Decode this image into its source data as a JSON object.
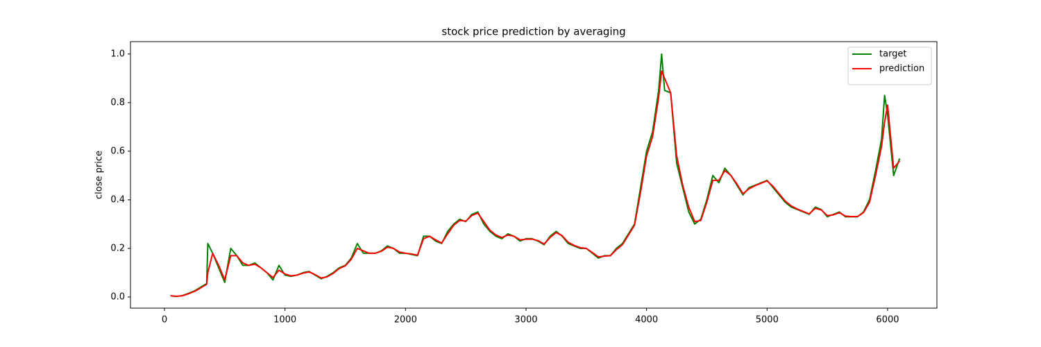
{
  "chart_data": {
    "type": "line",
    "title": "stock price prediction by averaging",
    "y_label": "close price",
    "xlim": [
      -282,
      6409
    ],
    "ylim": [
      -0.046,
      1.051
    ],
    "xticks": [
      0,
      1000,
      2000,
      3000,
      4000,
      5000,
      6000
    ],
    "yticks": [
      {
        "value": 0,
        "label": "0.0"
      },
      {
        "value": 0.2,
        "label": "0.2"
      },
      {
        "value": 0.4,
        "label": "0.4"
      },
      {
        "value": 0.6,
        "label": "0.6"
      },
      {
        "value": 0.8,
        "label": "0.8"
      },
      {
        "value": 1,
        "label": "1.0"
      }
    ],
    "legend": "upper right",
    "x": [
      50,
      100,
      150,
      200,
      250,
      300,
      350,
      360,
      400,
      450,
      500,
      550,
      600,
      650,
      700,
      750,
      800,
      850,
      900,
      950,
      1000,
      1050,
      1100,
      1150,
      1200,
      1250,
      1300,
      1350,
      1400,
      1450,
      1500,
      1550,
      1600,
      1650,
      1700,
      1750,
      1800,
      1850,
      1900,
      1950,
      2000,
      2050,
      2100,
      2150,
      2200,
      2250,
      2300,
      2350,
      2400,
      2450,
      2500,
      2550,
      2600,
      2650,
      2700,
      2750,
      2800,
      2850,
      2900,
      2950,
      3000,
      3050,
      3100,
      3150,
      3200,
      3250,
      3300,
      3350,
      3400,
      3450,
      3500,
      3550,
      3600,
      3650,
      3700,
      3750,
      3800,
      3850,
      3900,
      3950,
      4000,
      4050,
      4100,
      4125,
      4150,
      4200,
      4250,
      4300,
      4350,
      4400,
      4450,
      4500,
      4550,
      4600,
      4650,
      4700,
      4750,
      4800,
      4850,
      4900,
      4950,
      5000,
      5050,
      5100,
      5150,
      5200,
      5250,
      5300,
      5350,
      5400,
      5450,
      5500,
      5550,
      5600,
      5650,
      5700,
      5750,
      5800,
      5850,
      5900,
      5950,
      5975,
      6000,
      6050,
      6100
    ],
    "series": [
      {
        "name": "target",
        "color": "#008000",
        "values": [
          0.005,
          0.002,
          0.006,
          0.015,
          0.025,
          0.04,
          0.055,
          0.22,
          0.18,
          0.12,
          0.06,
          0.2,
          0.17,
          0.13,
          0.13,
          0.14,
          0.12,
          0.1,
          0.07,
          0.13,
          0.09,
          0.085,
          0.09,
          0.1,
          0.105,
          0.09,
          0.075,
          0.085,
          0.1,
          0.12,
          0.13,
          0.16,
          0.22,
          0.18,
          0.18,
          0.18,
          0.19,
          0.21,
          0.2,
          0.18,
          0.18,
          0.175,
          0.17,
          0.25,
          0.25,
          0.23,
          0.22,
          0.27,
          0.3,
          0.32,
          0.31,
          0.34,
          0.35,
          0.3,
          0.27,
          0.25,
          0.24,
          0.26,
          0.25,
          0.23,
          0.24,
          0.24,
          0.23,
          0.215,
          0.25,
          0.27,
          0.25,
          0.22,
          0.21,
          0.2,
          0.2,
          0.18,
          0.16,
          0.17,
          0.17,
          0.2,
          0.22,
          0.26,
          0.3,
          0.45,
          0.6,
          0.68,
          0.85,
          1.0,
          0.85,
          0.84,
          0.55,
          0.45,
          0.35,
          0.3,
          0.32,
          0.4,
          0.5,
          0.47,
          0.53,
          0.5,
          0.46,
          0.42,
          0.45,
          0.46,
          0.47,
          0.48,
          0.45,
          0.42,
          0.39,
          0.37,
          0.36,
          0.35,
          0.34,
          0.37,
          0.36,
          0.33,
          0.34,
          0.35,
          0.33,
          0.33,
          0.33,
          0.35,
          0.4,
          0.52,
          0.65,
          0.83,
          0.75,
          0.5,
          0.57
        ]
      },
      {
        "name": "prediction",
        "color": "#ff0000",
        "values": [
          0.005,
          0.003,
          0.005,
          0.013,
          0.023,
          0.037,
          0.052,
          0.1,
          0.18,
          0.13,
          0.07,
          0.17,
          0.17,
          0.14,
          0.13,
          0.135,
          0.12,
          0.1,
          0.08,
          0.11,
          0.095,
          0.087,
          0.09,
          0.098,
          0.103,
          0.092,
          0.078,
          0.083,
          0.097,
          0.117,
          0.128,
          0.155,
          0.2,
          0.19,
          0.18,
          0.18,
          0.188,
          0.205,
          0.2,
          0.185,
          0.18,
          0.177,
          0.172,
          0.24,
          0.25,
          0.235,
          0.222,
          0.26,
          0.295,
          0.315,
          0.312,
          0.335,
          0.345,
          0.31,
          0.275,
          0.255,
          0.245,
          0.255,
          0.25,
          0.235,
          0.238,
          0.238,
          0.232,
          0.218,
          0.245,
          0.265,
          0.252,
          0.225,
          0.212,
          0.203,
          0.2,
          0.183,
          0.165,
          0.168,
          0.17,
          0.195,
          0.215,
          0.255,
          0.295,
          0.43,
          0.58,
          0.66,
          0.82,
          0.93,
          0.9,
          0.84,
          0.58,
          0.46,
          0.37,
          0.31,
          0.315,
          0.39,
          0.48,
          0.48,
          0.52,
          0.5,
          0.465,
          0.425,
          0.445,
          0.458,
          0.468,
          0.478,
          0.455,
          0.425,
          0.395,
          0.375,
          0.362,
          0.352,
          0.342,
          0.365,
          0.358,
          0.335,
          0.338,
          0.347,
          0.333,
          0.331,
          0.331,
          0.347,
          0.39,
          0.5,
          0.62,
          0.72,
          0.79,
          0.53,
          0.56
        ]
      }
    ]
  }
}
